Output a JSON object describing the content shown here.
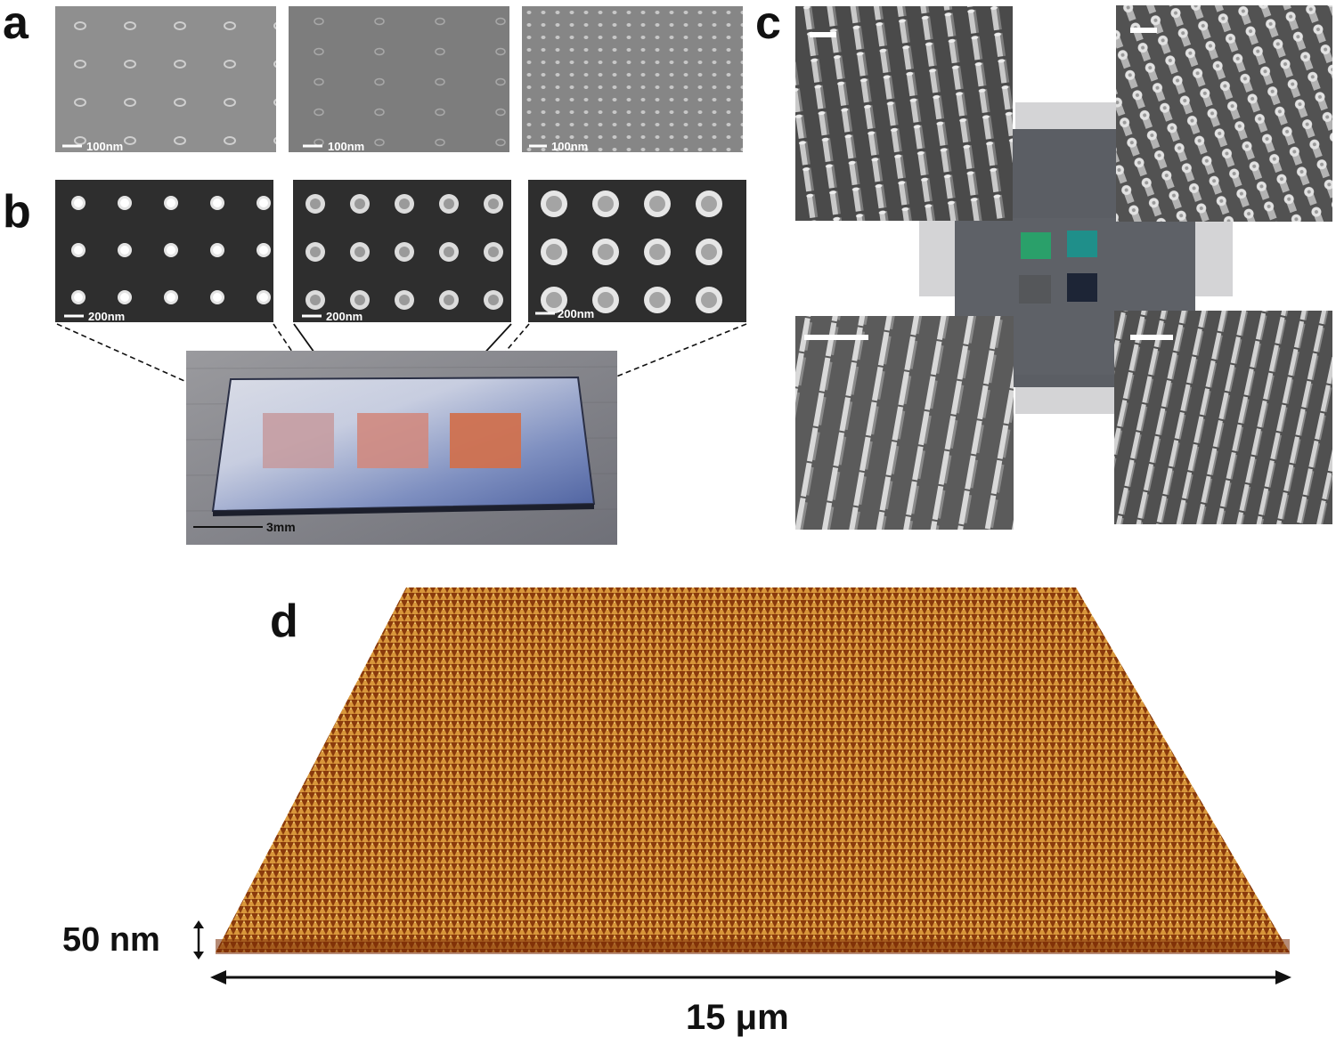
{
  "panels": {
    "a": {
      "letter": "a",
      "images": [
        {
          "scale_label": "100nm"
        },
        {
          "scale_label": "100nm"
        },
        {
          "scale_label": "100nm"
        }
      ]
    },
    "b": {
      "letter": "b",
      "images": [
        {
          "scale_label": "200nm"
        },
        {
          "scale_label": "200nm"
        },
        {
          "scale_label": "200nm"
        }
      ],
      "photo_scale_label": "3mm"
    },
    "c": {
      "letter": "c"
    },
    "d": {
      "letter": "d",
      "height_label": "50 nm",
      "width_label": "15 μm"
    }
  },
  "colors": {
    "sem_light": "#8f8f8f",
    "sem_dark": "#3a3a3a",
    "afm_peak": "#e7b24a",
    "afm_base": "#7a2c06",
    "swatch_green": "#2aa06a",
    "swatch_teal": "#1f8f8a",
    "swatch_gray": "#55575a",
    "swatch_navy": "#1d2536"
  }
}
